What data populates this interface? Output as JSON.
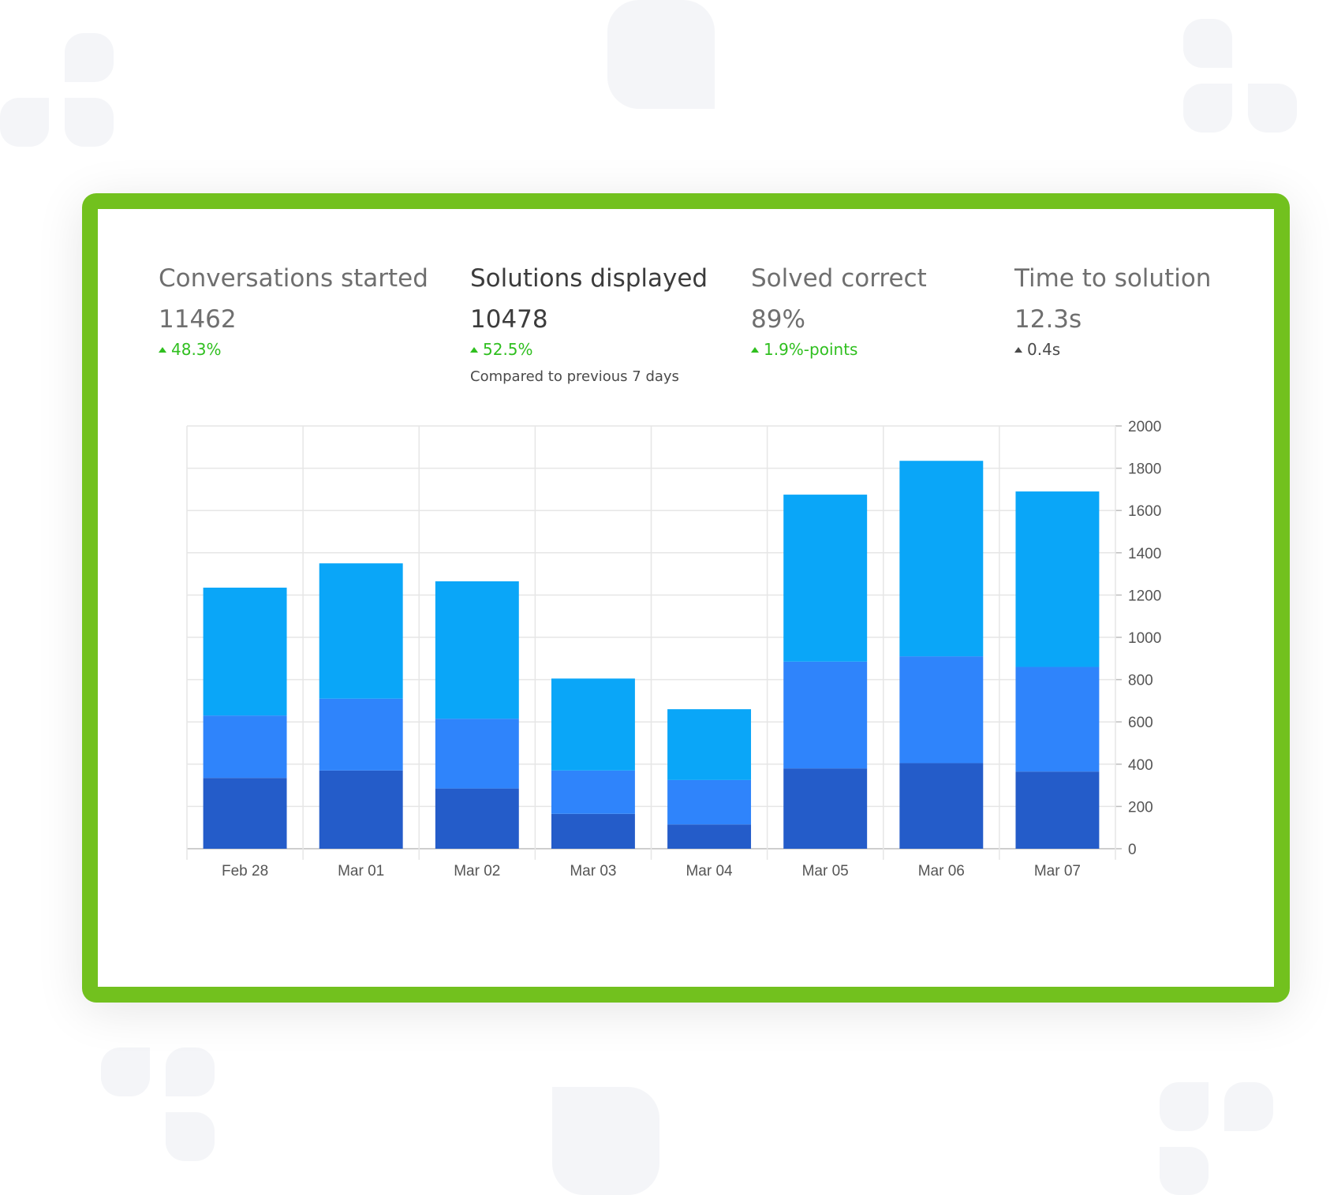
{
  "metrics": [
    {
      "label": "Conversations started",
      "value": "11462",
      "change": "48.3%",
      "change_color": "#2fbf1f"
    },
    {
      "label": "Solutions displayed",
      "value": "10478",
      "change": "52.5%",
      "change_color": "#2fbf1f",
      "note": "Compared to previous 7 days"
    },
    {
      "label": "Solved correct",
      "value": "89%",
      "change": "1.9%-points",
      "change_color": "#2fbf1f"
    },
    {
      "label": "Time to solution",
      "value": "12.3s",
      "change": "0.4s",
      "change_color": "#4a4a4a"
    }
  ],
  "colors": {
    "frame": "#72c11e",
    "series": [
      "#245cc9",
      "#2f84fb",
      "#0aa6f8"
    ]
  },
  "chart_data": {
    "type": "bar",
    "stacked": true,
    "categories": [
      "Feb 28",
      "Mar 01",
      "Mar 02",
      "Mar 03",
      "Mar 04",
      "Mar 05",
      "Mar 06",
      "Mar 07"
    ],
    "series": [
      {
        "values": [
          335,
          370,
          285,
          165,
          115,
          380,
          405,
          365
        ],
        "color": "#245cc9"
      },
      {
        "values": [
          295,
          340,
          330,
          205,
          210,
          505,
          505,
          495
        ],
        "color": "#2f84fb"
      },
      {
        "values": [
          605,
          640,
          650,
          435,
          335,
          790,
          925,
          830
        ],
        "color": "#0aa6f8"
      }
    ],
    "yticks": [
      "0",
      "200",
      "400",
      "600",
      "800",
      "1000",
      "1200",
      "1400",
      "1600",
      "1800",
      "2000"
    ],
    "ylim": [
      0,
      2000
    ],
    "grid": true,
    "yaxis_position": "right"
  }
}
